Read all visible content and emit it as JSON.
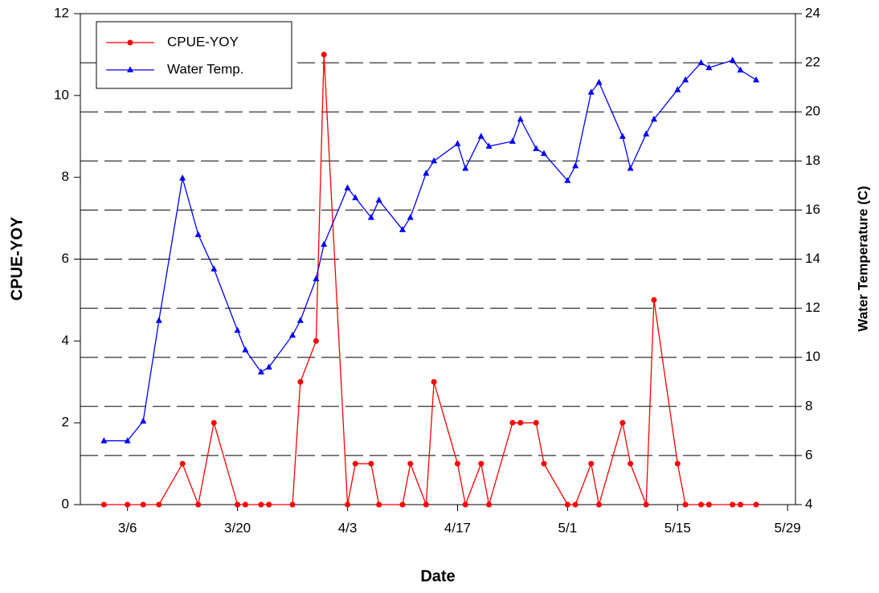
{
  "chart_data": {
    "type": "line",
    "x_label": "Date",
    "y_label": "CPUE-YOY",
    "y2_label": "Water Temperature (C)",
    "x": [
      "3/3",
      "3/6",
      "3/8",
      "3/10",
      "3/13",
      "3/15",
      "3/17",
      "3/20",
      "3/21",
      "3/23",
      "3/24",
      "3/27",
      "3/28",
      "3/30",
      "3/31",
      "4/3",
      "4/4",
      "4/6",
      "4/7",
      "4/10",
      "4/11",
      "4/13",
      "4/14",
      "4/17",
      "4/18",
      "4/20",
      "4/21",
      "4/24",
      "4/25",
      "4/27",
      "4/28",
      "5/1",
      "5/2",
      "5/4",
      "5/5",
      "5/8",
      "5/9",
      "5/11",
      "5/12",
      "5/15",
      "5/16",
      "5/18",
      "5/19",
      "5/22",
      "5/23",
      "5/25"
    ],
    "xlim": [
      "2/28",
      "5/30"
    ],
    "xticks": [
      "3/6",
      "3/20",
      "4/3",
      "4/17",
      "5/1",
      "5/15",
      "5/29"
    ],
    "ylim": [
      0,
      12
    ],
    "yticks": [
      0,
      2,
      4,
      6,
      8,
      10,
      12
    ],
    "y2lim": [
      4,
      24
    ],
    "y2ticks": [
      4,
      6,
      8,
      10,
      12,
      14,
      16,
      18,
      20,
      22,
      24
    ],
    "grid": "y2",
    "legend": "upper left",
    "series": [
      {
        "name": "CPUE-YOY",
        "color": "#ff0000",
        "marker": "circle",
        "values": [
          0,
          0,
          0,
          0,
          1,
          0,
          2,
          0,
          0,
          0,
          0,
          0,
          3,
          4,
          11,
          0,
          1,
          1,
          0,
          0,
          1,
          0,
          3,
          1,
          0,
          1,
          0,
          2,
          2,
          2,
          1,
          0,
          0,
          1,
          0,
          2,
          1,
          0,
          5,
          1,
          0,
          0,
          0,
          0,
          0,
          0
        ]
      },
      {
        "name": "Water Temp.",
        "color": "#0000ff",
        "marker": "triangle",
        "axis": "y2",
        "values": [
          6.6,
          6.6,
          7.4,
          11.5,
          17.3,
          15,
          13.6,
          11.1,
          10.3,
          9.4,
          9.6,
          10.9,
          11.5,
          13.2,
          14.6,
          16.9,
          16.5,
          15.7,
          16.4,
          15.2,
          15.7,
          17.5,
          18,
          18.7,
          17.7,
          19,
          18.6,
          18.8,
          19.7,
          18.5,
          18.3,
          17.2,
          17.8,
          20.8,
          21.2,
          19,
          17.7,
          19.1,
          19.7,
          20.9,
          21.3,
          22,
          21.8,
          22.1,
          21.7,
          21.3
        ]
      }
    ]
  }
}
